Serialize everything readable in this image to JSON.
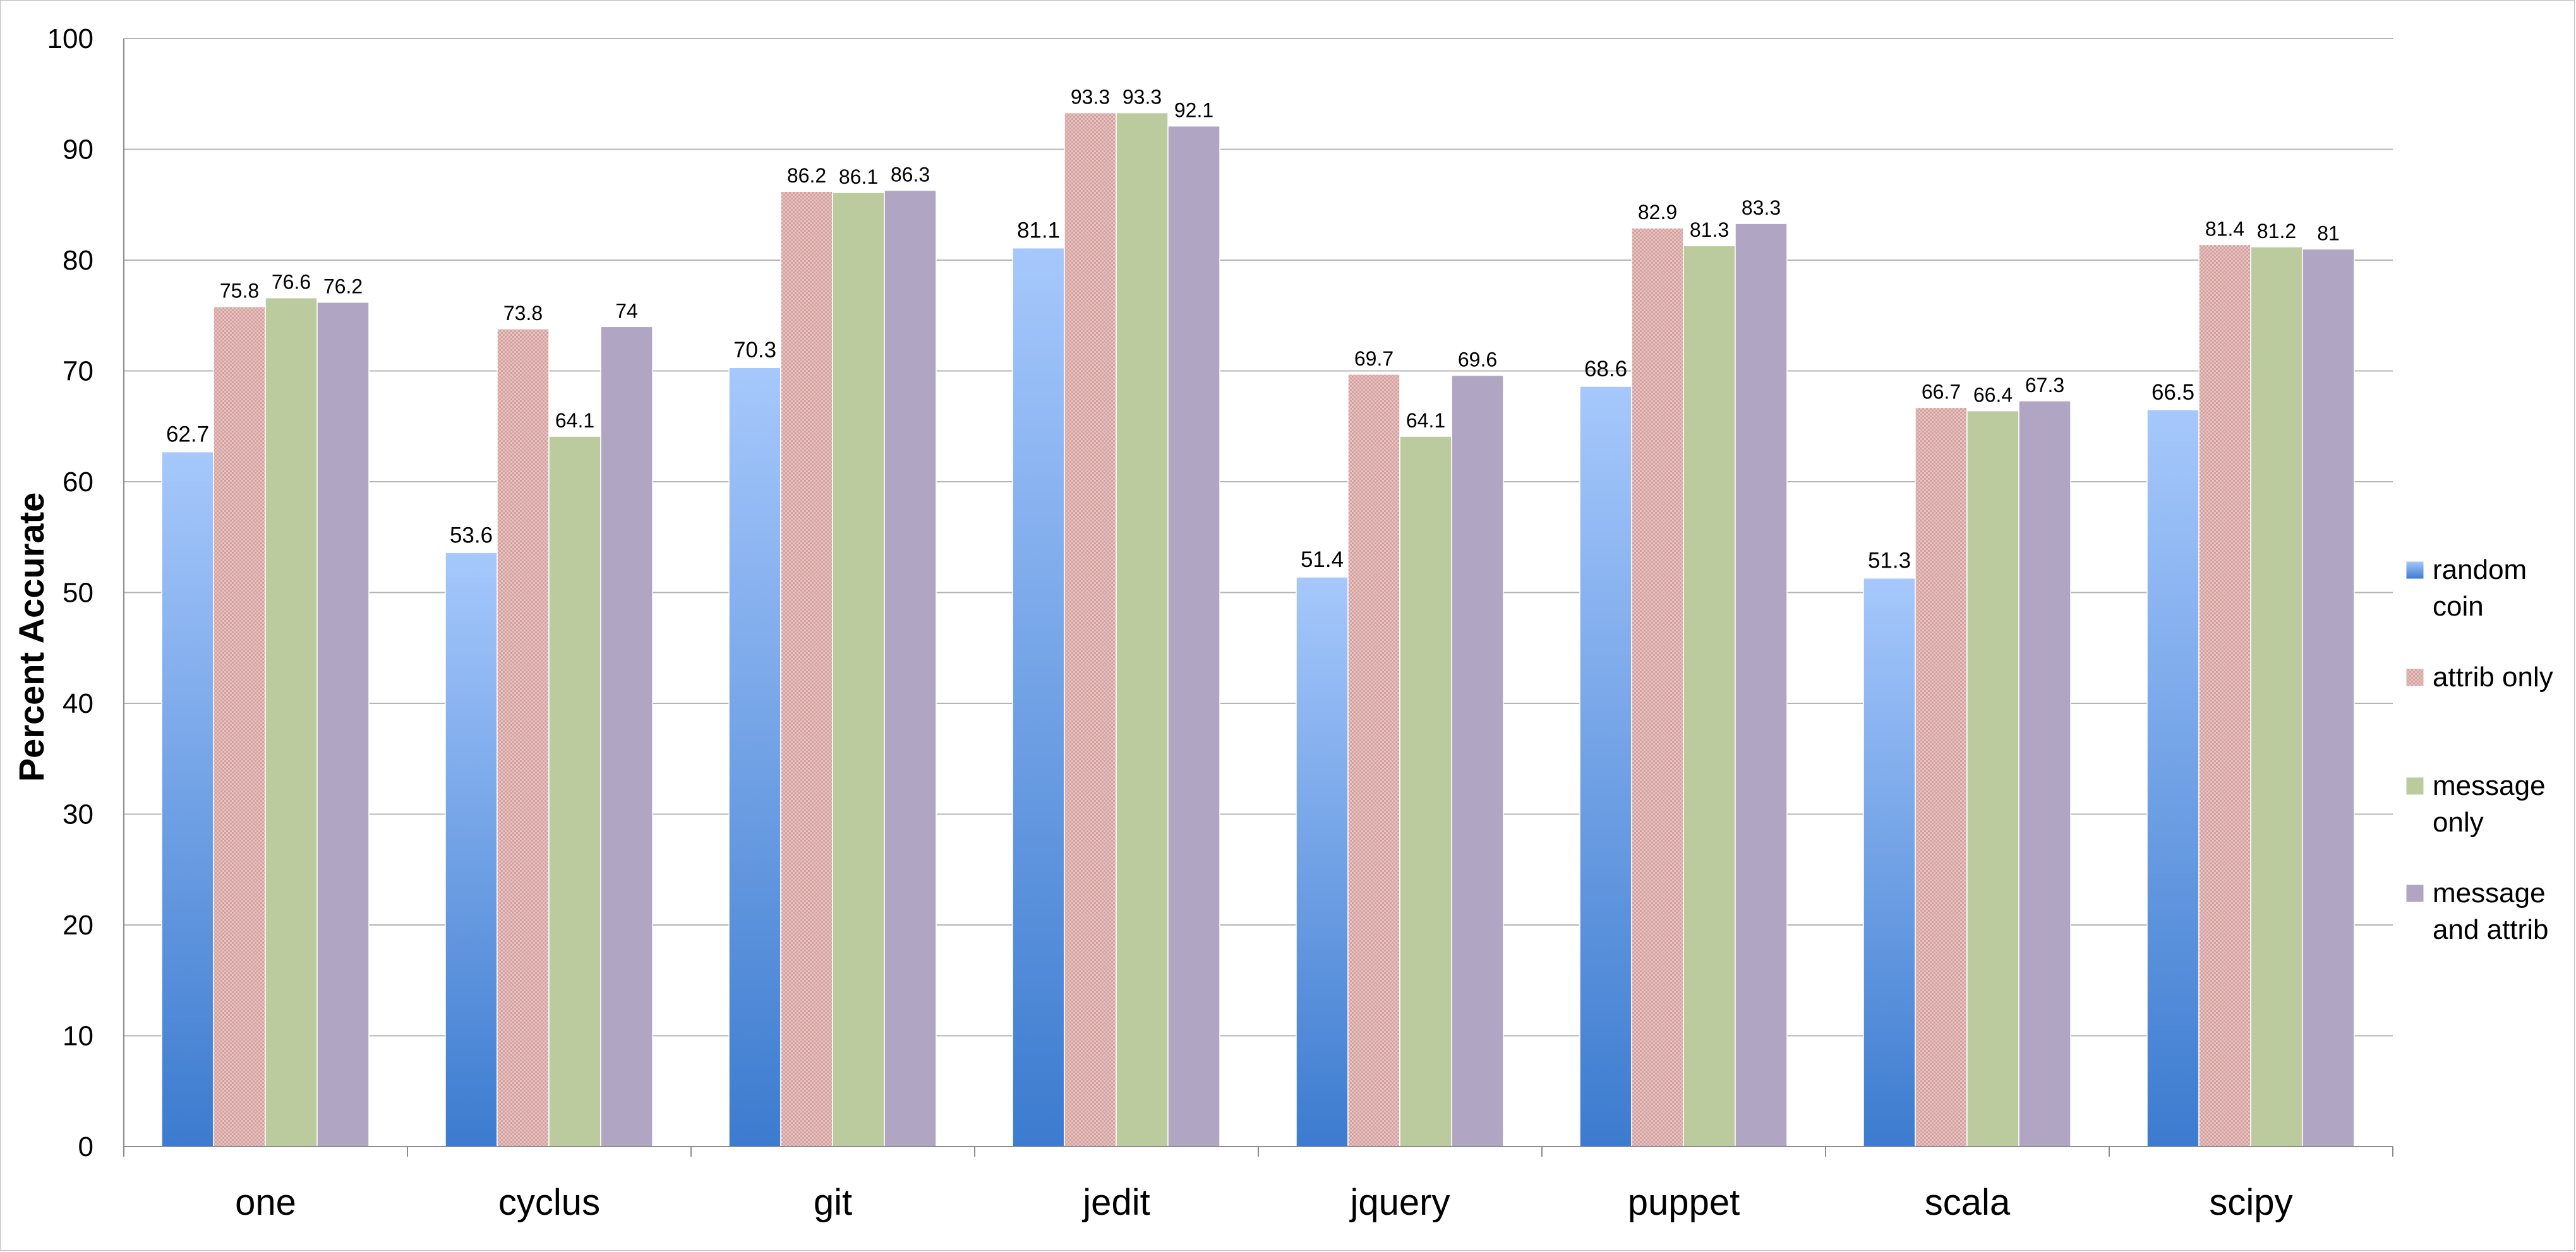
{
  "chart_data": {
    "type": "bar",
    "title": "",
    "xlabel": "",
    "ylabel": "Percent Accurate",
    "ylim": [
      0,
      100
    ],
    "yticks": [
      0,
      10,
      20,
      30,
      40,
      50,
      60,
      70,
      80,
      90,
      100
    ],
    "grid": true,
    "legend_position": "right",
    "categories": [
      "one",
      "cyclus",
      "git",
      "jedit",
      "jquery",
      "puppet",
      "scala",
      "scipy"
    ],
    "series": [
      {
        "name": "random coin",
        "legend_lines": [
          "random",
          "coin"
        ],
        "color": "#6a9ee8",
        "values": [
          62.7,
          53.6,
          70.3,
          81.1,
          51.4,
          68.6,
          51.3,
          66.5
        ]
      },
      {
        "name": "attrib only",
        "legend_lines": [
          "attrib only"
        ],
        "color": "#d8a6a4",
        "values": [
          75.8,
          73.8,
          86.2,
          93.3,
          69.7,
          82.9,
          66.7,
          81.4
        ]
      },
      {
        "name": "message only",
        "legend_lines": [
          "message",
          "only"
        ],
        "color": "#bccb9e",
        "values": [
          76.6,
          64.1,
          86.1,
          93.3,
          64.1,
          81.3,
          66.4,
          81.2
        ]
      },
      {
        "name": "message and attrib",
        "legend_lines": [
          "message",
          "and attrib"
        ],
        "color": "#b0a6c3",
        "values": [
          76.2,
          74,
          86.3,
          92.1,
          69.6,
          83.3,
          67.3,
          81
        ]
      }
    ]
  }
}
